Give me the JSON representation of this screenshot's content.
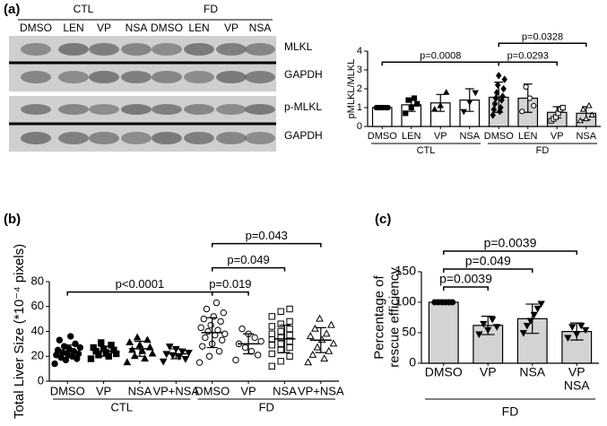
{
  "panel_labels": [
    "(a)",
    "(b)",
    "(c)"
  ],
  "blot": {
    "group_labels": [
      "CTL",
      "FD"
    ],
    "lanes": [
      "DMSO",
      "LEN",
      "VP",
      "NSA",
      "DMSO",
      "LEN",
      "VP",
      "NSA"
    ],
    "bands": [
      "MLKL",
      "GAPDH",
      "p-MLKL",
      "GAPDH"
    ]
  },
  "chart_data": [
    {
      "type": "bar",
      "ylabel": "pMLKL/MLKL",
      "ylim": [
        0,
        4
      ],
      "yticks": [
        0,
        1,
        2,
        3,
        4
      ],
      "categories": [
        "DMSO",
        "LEN",
        "VP",
        "NSA",
        "DMSO",
        "LEN",
        "VP",
        "NSA"
      ],
      "group_labels": [
        "CTL",
        "FD"
      ],
      "values": [
        1.0,
        1.15,
        1.25,
        1.4,
        1.55,
        1.5,
        0.75,
        0.7
      ],
      "errors": [
        0.05,
        0.35,
        0.45,
        0.6,
        0.8,
        0.75,
        0.3,
        0.35
      ],
      "colors": [
        "#ffffff",
        "#ffffff",
        "#ffffff",
        "#ffffff",
        "#d3d3d3",
        "#d3d3d3",
        "#d3d3d3",
        "#d3d3d3"
      ],
      "markers": [
        "circle",
        "square",
        "triangle",
        "triangle-down",
        "diamond",
        "circle-open",
        "square-open",
        "triangle-open"
      ],
      "points": [
        [
          1,
          1,
          1,
          1,
          1,
          1
        ],
        [
          0.7,
          1.0,
          1.2,
          1.4,
          1.5
        ],
        [
          0.9,
          1.1,
          1.8
        ],
        [
          0.8,
          1.3,
          1.8
        ],
        [
          0.6,
          0.8,
          0.9,
          1.0,
          1.2,
          1.4,
          1.5,
          1.6,
          1.8,
          2.0,
          2.2,
          2.5,
          2.7
        ],
        [
          0.8,
          1.1,
          1.5,
          2.1
        ],
        [
          0.3,
          0.4,
          0.5,
          0.7,
          0.9,
          1.0
        ],
        [
          0.3,
          0.4,
          0.6,
          0.9,
          1.1
        ]
      ],
      "annotations": [
        {
          "text": "p=0.0008",
          "from": 0,
          "to": 4
        },
        {
          "text": "p=0.0293",
          "from": 4,
          "to": 6
        },
        {
          "text": "p=0.0328",
          "from": 4,
          "to": 7
        }
      ]
    },
    {
      "type": "strip",
      "ylabel": "Total Liver Size (*10⁻⁴ pixels)",
      "ylim": [
        0,
        80
      ],
      "yticks": [
        0,
        20,
        40,
        60,
        80
      ],
      "categories": [
        "DMSO",
        "VP",
        "NSA",
        "VP+NSA",
        "DMSO",
        "VP",
        "NSA",
        "VP+NSA"
      ],
      "group_labels": [
        "CTL",
        "FD"
      ],
      "values": [
        24,
        24,
        26,
        22,
        39,
        30,
        34,
        33
      ],
      "errors": [
        5,
        4,
        6,
        4,
        12,
        8,
        11,
        10
      ],
      "markers": [
        "circle",
        "square",
        "triangle",
        "triangle-down",
        "circle-open",
        "circle-open",
        "square-open",
        "triangle-open"
      ],
      "points": [
        [
          14,
          17,
          18,
          19,
          20,
          21,
          22,
          22,
          23,
          24,
          25,
          26,
          27,
          28,
          30,
          33,
          36
        ],
        [
          18,
          20,
          21,
          22,
          23,
          24,
          25,
          26,
          27,
          29,
          31
        ],
        [
          15,
          18,
          20,
          22,
          24,
          25,
          27,
          29,
          31,
          33,
          35
        ],
        [
          16,
          18,
          20,
          21,
          22,
          23,
          24,
          26,
          28
        ],
        [
          15,
          20,
          24,
          28,
          30,
          33,
          35,
          37,
          38,
          40,
          41,
          43,
          45,
          48,
          50,
          52,
          55,
          58,
          63
        ],
        [
          17,
          21,
          24,
          27,
          30,
          32,
          35,
          38,
          42
        ],
        [
          12,
          16,
          20,
          22,
          25,
          27,
          29,
          30,
          32,
          34,
          35,
          37,
          38,
          40,
          42,
          44,
          46,
          48,
          52,
          56,
          58
        ],
        [
          15,
          18,
          21,
          24,
          27,
          30,
          33,
          36,
          38,
          42,
          45,
          50
        ]
      ],
      "annotations": [
        {
          "text": "p<0.0001",
          "from": 0,
          "to": 4
        },
        {
          "text": "p=0.019",
          "from": 4,
          "to": 5
        },
        {
          "text": "p=0.049",
          "from": 4,
          "to": 6
        },
        {
          "text": "p=0.043",
          "from": 4,
          "to": 7
        }
      ]
    },
    {
      "type": "bar",
      "ylabel": [
        "Percentage of",
        "rescue efficiency"
      ],
      "ylim": [
        0,
        150
      ],
      "yticks": [
        0,
        50,
        100,
        150
      ],
      "categories": [
        "DMSO",
        "VP",
        "NSA",
        [
          "VP",
          "NSA"
        ]
      ],
      "group_labels": [
        "FD"
      ],
      "values": [
        100,
        62,
        73,
        52
      ],
      "errors": [
        0,
        15,
        24,
        14
      ],
      "colors": [
        "#d3d3d3",
        "#d3d3d3",
        "#d3d3d3",
        "#d3d3d3"
      ],
      "markers": [
        "circle",
        "triangle-down",
        "triangle-down",
        "triangle-down"
      ],
      "points": [
        [
          100,
          100,
          100,
          100,
          100,
          100
        ],
        [
          48,
          55,
          60,
          65,
          72
        ],
        [
          50,
          62,
          70,
          80,
          90,
          98
        ],
        [
          42,
          48,
          55,
          60,
          62
        ]
      ],
      "annotations": [
        {
          "text": "p=0.0039",
          "from": 0,
          "to": 1
        },
        {
          "text": "p=0.049",
          "from": 0,
          "to": 2
        },
        {
          "text": "p=0.0039",
          "from": 0,
          "to": 3
        }
      ]
    }
  ]
}
